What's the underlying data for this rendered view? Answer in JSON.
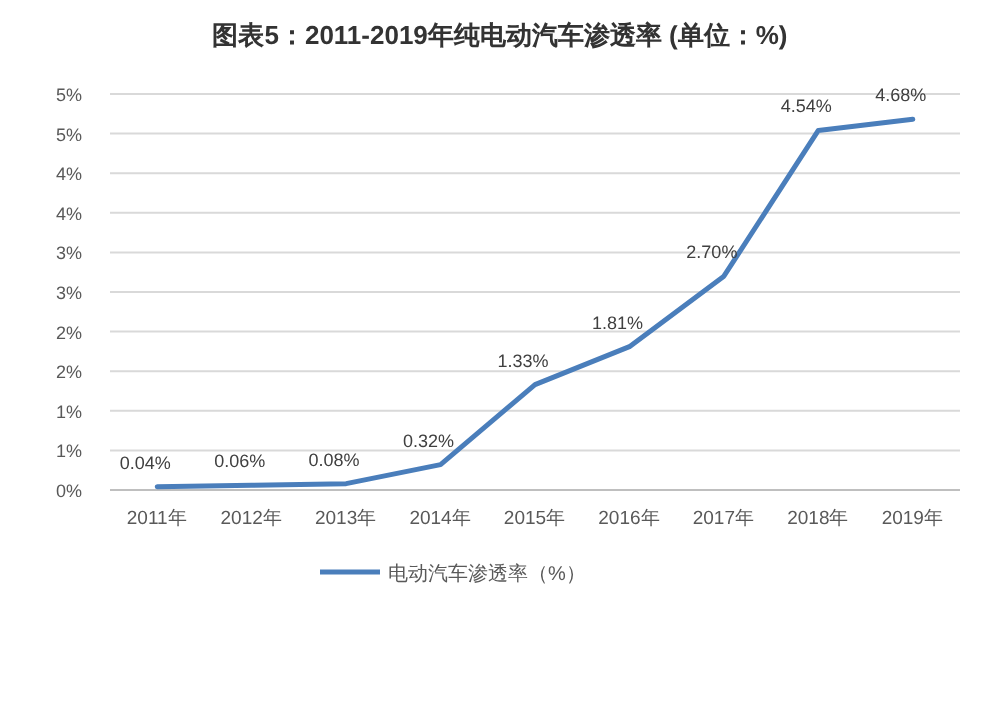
{
  "chart_data": {
    "type": "line",
    "title": "图表5：2011-2019年纯电动汽车渗透率 (单位：%)",
    "categories": [
      "2011年",
      "2012年",
      "2013年",
      "2014年",
      "2015年",
      "2016年",
      "2017年",
      "2018年",
      "2019年"
    ],
    "series": [
      {
        "name": "电动汽车渗透率（%）",
        "color": "#4a7ebb",
        "values": [
          0.04,
          0.06,
          0.08,
          0.32,
          1.33,
          1.81,
          2.7,
          4.54,
          4.68
        ],
        "value_labels": [
          "0.04%",
          "0.06%",
          "0.08%",
          "0.32%",
          "1.33%",
          "1.81%",
          "2.70%",
          "4.54%",
          "4.68%"
        ]
      }
    ],
    "ylim": [
      0,
      5
    ],
    "yticks": [
      {
        "value": 0,
        "label": "0%"
      },
      {
        "value": 0.5,
        "label": "1%"
      },
      {
        "value": 1,
        "label": "1%"
      },
      {
        "value": 1.5,
        "label": "2%"
      },
      {
        "value": 2,
        "label": "2%"
      },
      {
        "value": 2.5,
        "label": "3%"
      },
      {
        "value": 3,
        "label": "3%"
      },
      {
        "value": 3.5,
        "label": "4%"
      },
      {
        "value": 4,
        "label": "4%"
      },
      {
        "value": 4.5,
        "label": "5%"
      },
      {
        "value": 5,
        "label": "5%"
      }
    ],
    "grid": "y",
    "legend": "bottom",
    "marker": "none",
    "line_style": "solid"
  }
}
